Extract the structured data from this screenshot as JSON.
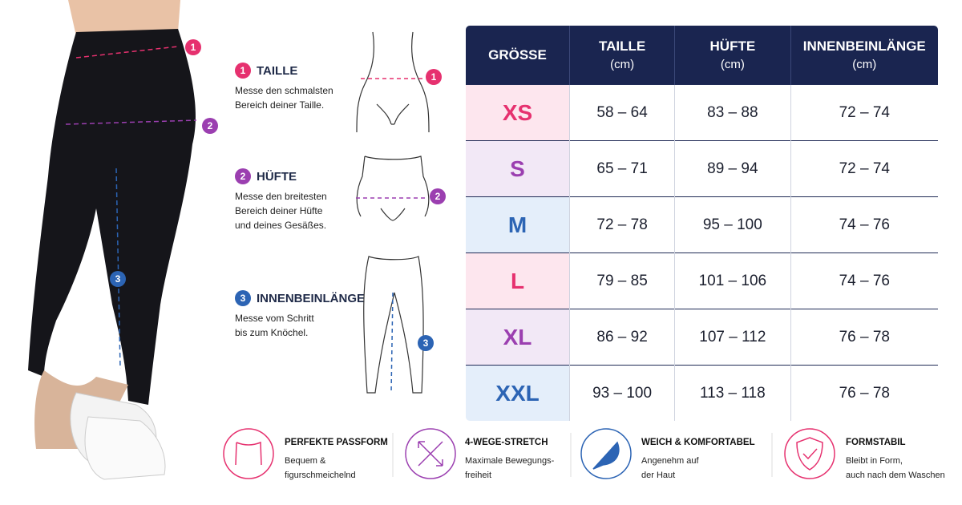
{
  "steps": [
    {
      "number": "1",
      "title": "TAILLE",
      "text": [
        "Messe den schmalsten",
        "Bereich deiner Taille."
      ]
    },
    {
      "number": "2",
      "title": "HÜFTE",
      "text": [
        "Messe den breitesten",
        "Bereich deiner Hüfte",
        "und deines Gesäßes."
      ]
    },
    {
      "number": "3",
      "title": "INNENBEINLÄNGE",
      "text": [
        "Messe vom Schritt",
        "bis zum Knöchel."
      ]
    }
  ],
  "table": {
    "header": [
      {
        "title": "GRÖSSE"
      },
      {
        "title": "TAILLE",
        "unit": "(cm)"
      },
      {
        "title": "HÜFTE",
        "unit": "(cm)"
      },
      {
        "title": "INNENBEINLÄNGE",
        "unit": "(cm)"
      }
    ],
    "rows": [
      [
        "XS",
        "58 – 64",
        "83 – 88",
        "72 – 74"
      ],
      [
        "S",
        "65 – 71",
        "89 – 94",
        "72 – 74"
      ],
      [
        "M",
        "72 – 78",
        "95 – 100",
        "74 – 76"
      ],
      [
        "L",
        "79 – 85",
        "101 – 106",
        "74 – 76"
      ],
      [
        "XL",
        "86 – 92",
        "107 – 112",
        "76 – 78"
      ],
      [
        "XXL",
        "93 – 100",
        "113 – 118",
        "76 – 78"
      ]
    ]
  },
  "features": [
    {
      "title": "PERFEKTE PASSFORM",
      "text": [
        "Bequem &",
        "figurschmeichelnd"
      ]
    },
    {
      "title": "4-WEGE-STRETCH",
      "text": [
        "Maximale Bewegungs-",
        "freiheit"
      ]
    },
    {
      "title": "WEICH & KOMFORTABEL",
      "text": [
        "Angenehm auf",
        "der Haut"
      ]
    },
    {
      "title": "FORMSTABIL",
      "text": [
        "Bleibt in Form,",
        "auch nach dem Waschen"
      ]
    }
  ]
}
